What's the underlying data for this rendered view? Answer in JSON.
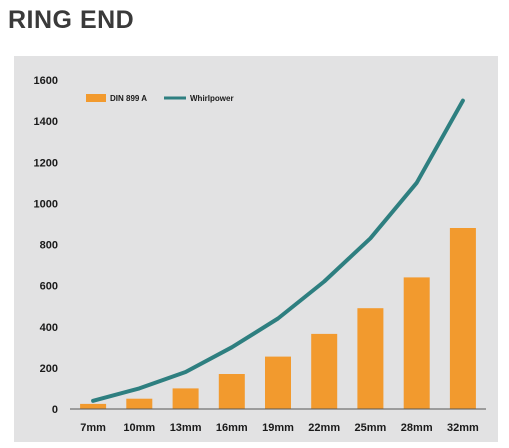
{
  "page": {
    "title": "RING END"
  },
  "chart_data": {
    "type": "bar",
    "categories": [
      "7mm",
      "10mm",
      "13mm",
      "16mm",
      "19mm",
      "22mm",
      "25mm",
      "28mm",
      "32mm"
    ],
    "series": [
      {
        "name": "DIN 899 A",
        "type": "bar",
        "color": "#f29a2e",
        "values": [
          25,
          50,
          100,
          170,
          255,
          365,
          490,
          640,
          880
        ]
      },
      {
        "name": "Whirlpower",
        "type": "line",
        "color": "#2e7f80",
        "values": [
          40,
          100,
          180,
          300,
          440,
          620,
          830,
          1100,
          1500
        ]
      }
    ],
    "yticks": [
      "0",
      "200",
      "400",
      "600",
      "800",
      "1000",
      "1200",
      "1400",
      "1600"
    ],
    "ylim": [
      0,
      1600
    ],
    "legend_position": "top-left",
    "grid": false
  }
}
